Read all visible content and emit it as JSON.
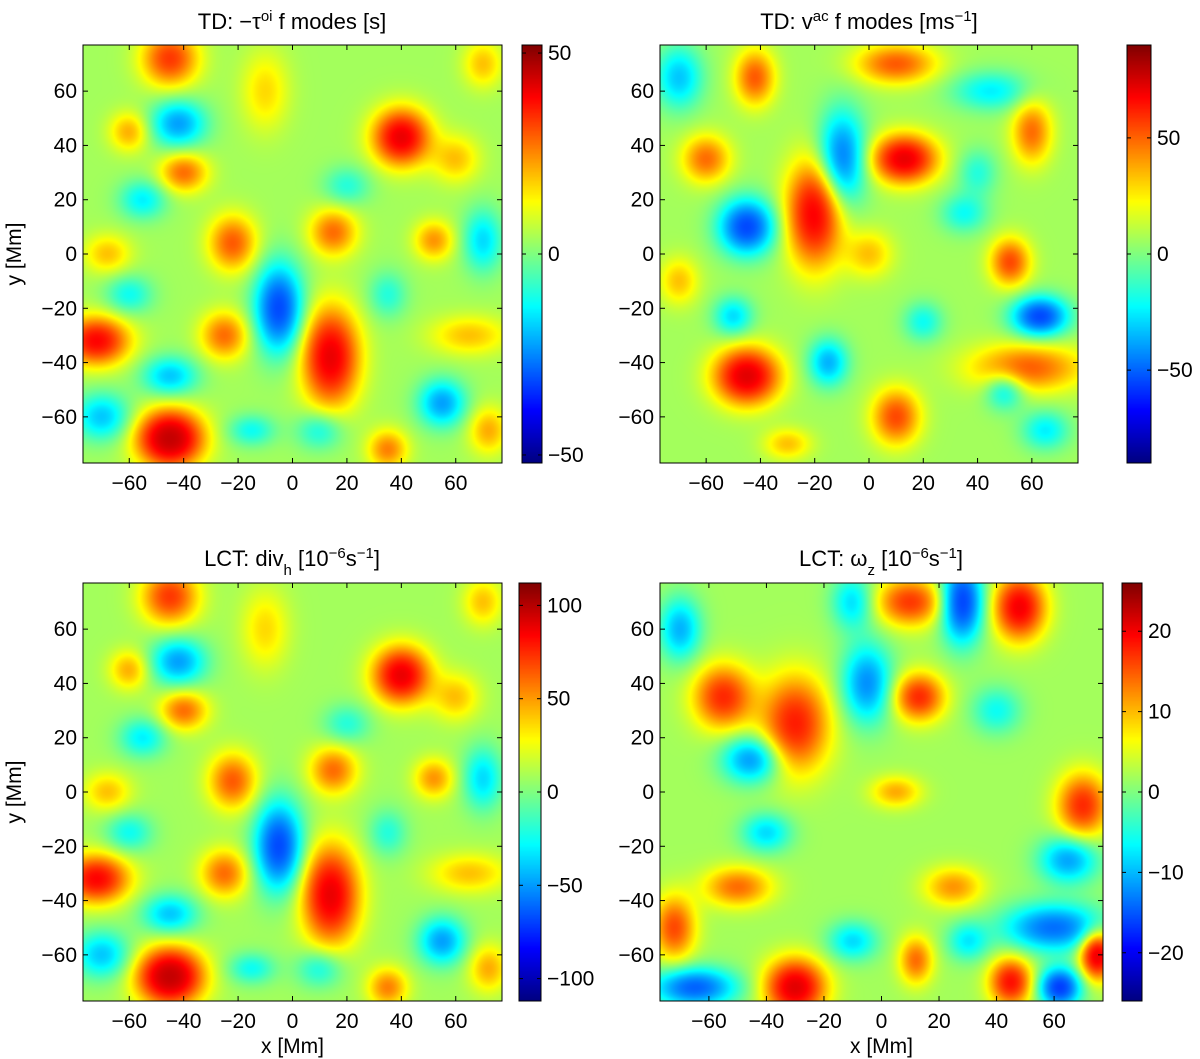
{
  "chart_data": [
    {
      "type": "heatmap",
      "title": {
        "prefix": "TD:  −τ",
        "sup": "oi",
        "suffix": " f modes  [s]"
      },
      "xlabel": "",
      "ylabel": "y [Mm]",
      "xlim": [
        -77,
        77
      ],
      "ylim": [
        -77,
        77
      ],
      "xticks": [
        -60,
        -40,
        -20,
        0,
        20,
        40,
        60
      ],
      "yticks": [
        -60,
        -40,
        -20,
        0,
        20,
        40,
        60
      ],
      "colorbar": {
        "range": [
          -52,
          52
        ],
        "ticks": [
          -50,
          0,
          50
        ]
      },
      "blobs": [
        [
          -45,
          72,
          7,
          7,
          0.65
        ],
        [
          -60,
          45,
          5,
          5,
          0.35
        ],
        [
          -42,
          48,
          7,
          6,
          -0.55
        ],
        [
          -40,
          30,
          6,
          5,
          0.5
        ],
        [
          -55,
          20,
          6,
          5,
          -0.35
        ],
        [
          -10,
          60,
          6,
          10,
          0.25
        ],
        [
          40,
          43,
          7,
          7,
          0.95
        ],
        [
          15,
          8,
          6,
          6,
          0.5
        ],
        [
          -5,
          -20,
          6,
          11,
          -0.85
        ],
        [
          14,
          -38,
          7,
          12,
          0.95
        ],
        [
          -22,
          4,
          6,
          7,
          0.55
        ],
        [
          -25,
          -30,
          6,
          6,
          0.5
        ],
        [
          -72,
          -32,
          8,
          6,
          0.85
        ],
        [
          -70,
          -60,
          7,
          6,
          -0.45
        ],
        [
          -45,
          -68,
          8,
          7,
          1.2
        ],
        [
          -15,
          -65,
          6,
          4,
          -0.3
        ],
        [
          10,
          -65,
          6,
          5,
          -0.3
        ],
        [
          35,
          -72,
          5,
          5,
          0.45
        ],
        [
          52,
          5,
          5,
          5,
          0.4
        ],
        [
          55,
          -55,
          6,
          6,
          -0.55
        ],
        [
          72,
          -65,
          5,
          6,
          0.35
        ],
        [
          60,
          35,
          6,
          6,
          0.3
        ],
        [
          70,
          5,
          5,
          8,
          -0.4
        ],
        [
          65,
          -30,
          10,
          5,
          0.3
        ],
        [
          -45,
          -45,
          7,
          5,
          -0.45
        ],
        [
          20,
          25,
          6,
          5,
          -0.25
        ],
        [
          -68,
          0,
          6,
          5,
          0.3
        ],
        [
          35,
          -15,
          5,
          6,
          -0.25
        ],
        [
          70,
          70,
          5,
          6,
          0.3
        ],
        [
          -60,
          -15,
          6,
          5,
          -0.3
        ]
      ]
    },
    {
      "type": "heatmap",
      "title": {
        "prefix": "TD:  v",
        "sup": "ac",
        "suffix": " f modes  [ms",
        "sup2": "−1",
        "suffix2": "]"
      },
      "xlabel": "",
      "ylabel": "",
      "xlim": [
        -77,
        77
      ],
      "ylim": [
        -77,
        77
      ],
      "xticks": [
        -60,
        -40,
        -20,
        0,
        20,
        40,
        60
      ],
      "yticks": [
        -60,
        -40,
        -20,
        0,
        20,
        40,
        60
      ],
      "colorbar": {
        "range": [
          -90,
          90
        ],
        "ticks": [
          -50,
          0,
          50
        ]
      },
      "blobs": [
        [
          -42,
          65,
          5,
          7,
          0.55
        ],
        [
          -60,
          35,
          6,
          6,
          0.5
        ],
        [
          -70,
          65,
          6,
          8,
          -0.45
        ],
        [
          -45,
          10,
          7,
          7,
          -0.85
        ],
        [
          -20,
          15,
          7,
          13,
          0.9
        ],
        [
          -10,
          35,
          6,
          12,
          -0.7
        ],
        [
          13,
          35,
          8,
          6,
          0.95
        ],
        [
          10,
          70,
          10,
          5,
          0.55
        ],
        [
          45,
          60,
          10,
          5,
          -0.35
        ],
        [
          60,
          45,
          5,
          8,
          0.5
        ],
        [
          52,
          -3,
          5,
          6,
          0.6
        ],
        [
          63,
          -23,
          7,
          5,
          -0.85
        ],
        [
          58,
          -42,
          14,
          6,
          0.55
        ],
        [
          -45,
          -45,
          8,
          7,
          1.0
        ],
        [
          -15,
          -40,
          5,
          6,
          -0.5
        ],
        [
          -50,
          -23,
          5,
          5,
          -0.4
        ],
        [
          10,
          -60,
          6,
          7,
          0.6
        ],
        [
          50,
          -50,
          5,
          5,
          -0.4
        ],
        [
          0,
          0,
          6,
          6,
          0.3
        ],
        [
          -70,
          -10,
          5,
          6,
          0.3
        ],
        [
          35,
          15,
          6,
          5,
          -0.3
        ],
        [
          20,
          -25,
          5,
          5,
          -0.3
        ],
        [
          65,
          -65,
          6,
          5,
          -0.35
        ],
        [
          -30,
          -70,
          6,
          4,
          0.3
        ],
        [
          40,
          30,
          5,
          6,
          -0.25
        ]
      ]
    },
    {
      "type": "heatmap",
      "title": {
        "prefix": "LCT:  div",
        "sub": "h",
        "suffix": "  [10",
        "sup2": "−6",
        "suffix2": "s",
        "sup3": "−1",
        "suffix3": "]"
      },
      "xlabel": "x [Mm]",
      "ylabel": "y [Mm]",
      "xlim": [
        -77,
        77
      ],
      "ylim": [
        -77,
        77
      ],
      "xticks": [
        -60,
        -40,
        -20,
        0,
        20,
        40,
        60
      ],
      "yticks": [
        -60,
        -40,
        -20,
        0,
        20,
        40,
        60
      ],
      "colorbar": {
        "range": [
          -112,
          112
        ],
        "ticks": [
          -100,
          -50,
          0,
          50,
          100
        ]
      },
      "blobs": [
        [
          -45,
          72,
          7,
          7,
          0.65
        ],
        [
          -60,
          45,
          5,
          5,
          0.35
        ],
        [
          -42,
          48,
          7,
          6,
          -0.55
        ],
        [
          -40,
          30,
          6,
          5,
          0.5
        ],
        [
          -55,
          20,
          6,
          5,
          -0.35
        ],
        [
          -10,
          60,
          6,
          10,
          0.25
        ],
        [
          40,
          43,
          7,
          7,
          0.95
        ],
        [
          15,
          8,
          6,
          6,
          0.5
        ],
        [
          -5,
          -20,
          6,
          11,
          -0.85
        ],
        [
          14,
          -38,
          7,
          12,
          0.95
        ],
        [
          -22,
          4,
          6,
          7,
          0.55
        ],
        [
          -25,
          -30,
          6,
          6,
          0.5
        ],
        [
          -72,
          -32,
          8,
          6,
          0.85
        ],
        [
          -70,
          -60,
          7,
          6,
          -0.45
        ],
        [
          -45,
          -68,
          8,
          7,
          1.2
        ],
        [
          -15,
          -65,
          6,
          4,
          -0.3
        ],
        [
          10,
          -65,
          6,
          5,
          -0.3
        ],
        [
          35,
          -72,
          5,
          5,
          0.45
        ],
        [
          52,
          5,
          5,
          5,
          0.4
        ],
        [
          55,
          -55,
          6,
          6,
          -0.55
        ],
        [
          72,
          -65,
          5,
          6,
          0.35
        ],
        [
          60,
          35,
          6,
          6,
          0.3
        ],
        [
          70,
          5,
          5,
          8,
          -0.4
        ],
        [
          65,
          -30,
          10,
          5,
          0.3
        ],
        [
          -45,
          -45,
          7,
          5,
          -0.45
        ],
        [
          20,
          25,
          6,
          5,
          -0.25
        ],
        [
          -68,
          0,
          6,
          5,
          0.3
        ],
        [
          35,
          -15,
          5,
          6,
          -0.25
        ],
        [
          70,
          70,
          5,
          6,
          0.3
        ],
        [
          -60,
          -15,
          6,
          5,
          -0.3
        ]
      ]
    },
    {
      "type": "heatmap",
      "title": {
        "prefix": "LCT:  ω",
        "sub": "z",
        "suffix": "  [10",
        "sup2": "−6",
        "suffix2": "s",
        "sup3": "−1",
        "suffix3": "]"
      },
      "xlabel": "x [Mm]",
      "ylabel": "",
      "xlim": [
        -77,
        77
      ],
      "ylim": [
        -77,
        77
      ],
      "xticks": [
        -60,
        -40,
        -20,
        0,
        20,
        40,
        60
      ],
      "yticks": [
        -60,
        -40,
        -20,
        0,
        20,
        40,
        60
      ],
      "colorbar": {
        "range": [
          -26,
          26
        ],
        "ticks": [
          -20,
          -10,
          0,
          10,
          20
        ]
      },
      "blobs": [
        [
          10,
          70,
          8,
          6,
          0.65
        ],
        [
          28,
          70,
          5,
          10,
          -0.9
        ],
        [
          48,
          68,
          6,
          8,
          0.9
        ],
        [
          -10,
          70,
          5,
          7,
          -0.4
        ],
        [
          -55,
          35,
          7,
          8,
          0.7
        ],
        [
          -30,
          25,
          8,
          12,
          0.75
        ],
        [
          -5,
          40,
          6,
          10,
          -0.6
        ],
        [
          13,
          35,
          6,
          6,
          0.7
        ],
        [
          -45,
          12,
          7,
          6,
          -0.6
        ],
        [
          -70,
          60,
          5,
          8,
          -0.5
        ],
        [
          70,
          -5,
          6,
          8,
          0.7
        ],
        [
          65,
          -25,
          7,
          6,
          -0.55
        ],
        [
          60,
          -50,
          12,
          6,
          -0.7
        ],
        [
          -30,
          -72,
          7,
          7,
          1.0
        ],
        [
          -65,
          -72,
          10,
          5,
          -0.75
        ],
        [
          -50,
          -35,
          8,
          5,
          0.5
        ],
        [
          45,
          -70,
          5,
          6,
          0.8
        ],
        [
          62,
          -72,
          5,
          5,
          -0.9
        ],
        [
          12,
          -62,
          4,
          6,
          0.5
        ],
        [
          75,
          -60,
          4,
          6,
          1.0
        ],
        [
          -72,
          -50,
          5,
          8,
          0.6
        ],
        [
          25,
          -35,
          7,
          5,
          0.4
        ],
        [
          5,
          0,
          6,
          4,
          0.35
        ],
        [
          -10,
          -55,
          6,
          5,
          -0.4
        ],
        [
          40,
          30,
          6,
          6,
          -0.3
        ],
        [
          -40,
          -15,
          6,
          5,
          -0.4
        ],
        [
          30,
          -55,
          5,
          5,
          -0.35
        ]
      ]
    }
  ]
}
